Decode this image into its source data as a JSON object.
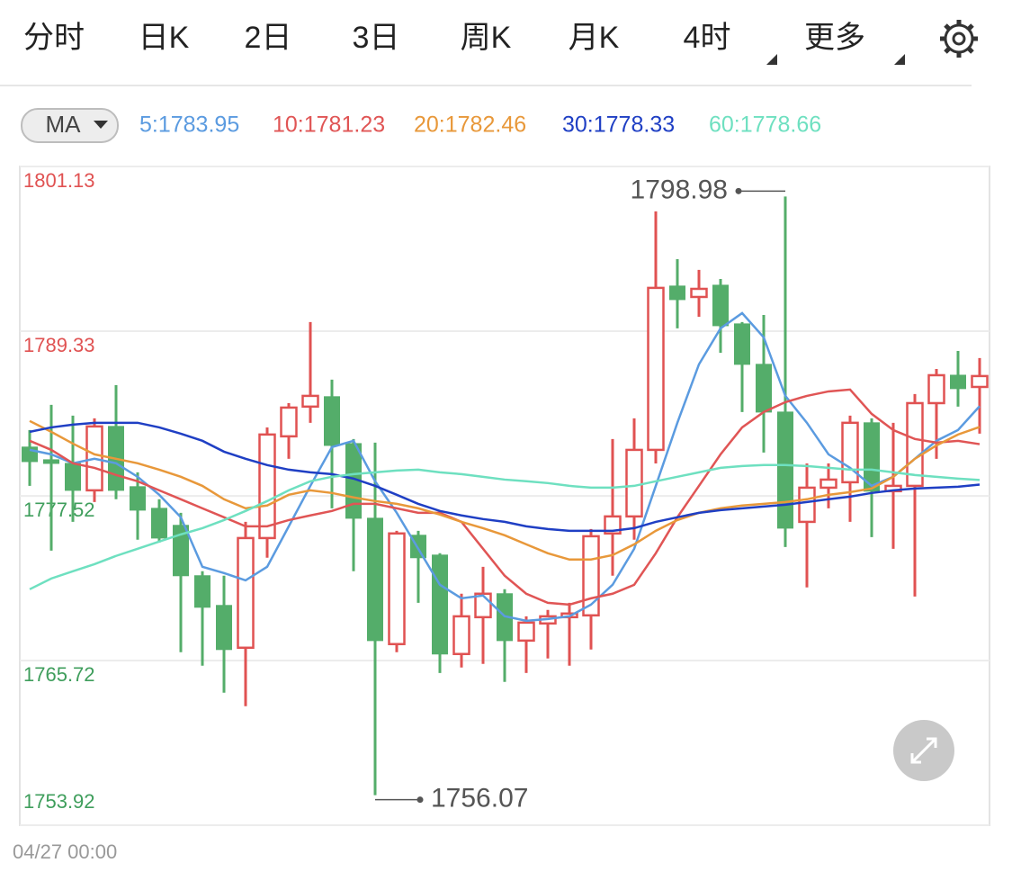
{
  "tabs": {
    "items": [
      "分时",
      "日K",
      "2日",
      "3日",
      "周K",
      "月K",
      "4时",
      "更多"
    ],
    "active": 6,
    "dropdowns": [
      6,
      7
    ]
  },
  "indicator": "MA",
  "chart_data": {
    "type": "candlestick",
    "categories": [
      "04/27 00:00",
      null,
      null,
      null,
      null,
      null,
      null,
      null,
      null,
      null,
      null,
      null,
      null,
      null,
      null,
      null,
      null,
      null,
      null,
      null,
      null,
      null,
      null,
      null,
      null,
      null,
      null,
      null,
      null,
      null,
      null,
      null,
      null,
      null,
      null,
      null,
      null,
      null,
      null,
      null,
      null,
      null,
      null,
      null,
      null
    ],
    "ylim": [
      1753.92,
      1801.13
    ],
    "yticks": [
      1801.13,
      1789.33,
      1777.52,
      1765.72,
      1753.92
    ],
    "ytick_colors": [
      "#e05252",
      "#e05252",
      "#3f9e5c",
      "#3f9e5c",
      "#3f9e5c"
    ],
    "grid": true,
    "up_color": "#e05252",
    "down_color": "#54ad6a",
    "candles": {
      "open": [
        1781.02,
        1780.11,
        1779.85,
        1777.92,
        1782.5,
        1778.18,
        1776.63,
        1775.41,
        1771.8,
        1769.67,
        1766.64,
        1774.5,
        1781.79,
        1783.92,
        1784.63,
        1781.27,
        1775.92,
        1766.9,
        1774.7,
        1773.28,
        1766.19,
        1768.83,
        1770.51,
        1767.15,
        1768.38,
        1768.83,
        1768.96,
        1774.83,
        1776.05,
        1780.82,
        1792.56,
        1791.78,
        1792.62,
        1789.85,
        1786.95,
        1783.53,
        1775.66,
        1778.11,
        1778.5,
        1782.76,
        1777.86,
        1778.24,
        1784.17,
        1786.17,
        1785.33
      ],
      "high": [
        1782.24,
        1784.05,
        1783.27,
        1783.08,
        1785.46,
        1779.21,
        1777.28,
        1776.31,
        1772.12,
        1771.8,
        1775.66,
        1782.43,
        1784.17,
        1789.98,
        1785.85,
        1781.6,
        1781.34,
        1775.02,
        1775.02,
        1773.41,
        1770.51,
        1772.44,
        1770.83,
        1768.89,
        1769.35,
        1769.86,
        1775.15,
        1781.6,
        1783.08,
        1797.91,
        1794.49,
        1793.72,
        1793.07,
        1789.98,
        1790.49,
        1798.98,
        1779.85,
        1779.85,
        1783.27,
        1783.08,
        1782.76,
        1784.82,
        1786.62,
        1787.91,
        1787.4
      ],
      "low": [
        1778.24,
        1773.6,
        1775.66,
        1777.08,
        1777.28,
        1774.38,
        1774.18,
        1766.32,
        1765.35,
        1763.42,
        1762.45,
        1773.09,
        1780.18,
        1782.76,
        1776.63,
        1772.12,
        1756.07,
        1766.32,
        1769.86,
        1764.83,
        1765.22,
        1765.48,
        1764.19,
        1764.83,
        1765.87,
        1765.35,
        1766.51,
        1771.8,
        1774.38,
        1779.85,
        1789.53,
        1790.36,
        1787.78,
        1783.53,
        1780.63,
        1773.86,
        1770.96,
        1776.63,
        1775.66,
        1774.57,
        1773.73,
        1770.31,
        1780.18,
        1783.92,
        1781.98
      ],
      "close": [
        1779.98,
        1779.85,
        1777.92,
        1782.5,
        1777.92,
        1776.5,
        1774.5,
        1771.8,
        1769.54,
        1766.51,
        1774.5,
        1781.92,
        1783.85,
        1784.69,
        1781.14,
        1775.92,
        1767.15,
        1774.83,
        1773.09,
        1766.19,
        1768.89,
        1770.51,
        1767.15,
        1768.44,
        1768.89,
        1769.09,
        1774.63,
        1776.05,
        1780.82,
        1792.43,
        1791.59,
        1792.36,
        1789.72,
        1786.95,
        1783.53,
        1775.21,
        1778.11,
        1778.69,
        1782.76,
        1777.86,
        1778.24,
        1784.17,
        1786.17,
        1785.21,
        1786.11
      ]
    },
    "series": [
      {
        "name": "5",
        "legend_label": "5:1783.95",
        "color": "#5b9be0",
        "values": [
          1780.82,
          1780.5,
          1779.86,
          1780.18,
          1779.86,
          1778.89,
          1777.6,
          1775.99,
          1772.44,
          1771.99,
          1771.47,
          1772.44,
          1775.34,
          1778.24,
          1781.02,
          1781.47,
          1778.57,
          1776.31,
          1773.73,
          1771.15,
          1770.18,
          1770.38,
          1768.9,
          1768.57,
          1768.7,
          1768.9,
          1769.73,
          1771.15,
          1773.73,
          1778.24,
          1782.76,
          1786.95,
          1789.53,
          1790.62,
          1788.88,
          1784.69,
          1782.76,
          1780.5,
          1779.53,
          1778.24,
          1778.89,
          1780.18,
          1781.47,
          1782.24,
          1783.95
        ]
      },
      {
        "name": "10",
        "legend_label": "10:1781.23",
        "color": "#e05555",
        "values": [
          1781.47,
          1780.82,
          1779.86,
          1779.53,
          1779.02,
          1778.57,
          1777.92,
          1777.28,
          1776.63,
          1775.99,
          1775.34,
          1775.34,
          1775.79,
          1776.12,
          1776.44,
          1776.95,
          1776.95,
          1776.63,
          1776.31,
          1776.31,
          1775.66,
          1773.73,
          1771.8,
          1770.51,
          1769.86,
          1769.73,
          1770.18,
          1770.51,
          1771.15,
          1773.41,
          1775.99,
          1778.24,
          1780.5,
          1782.43,
          1783.53,
          1784.24,
          1784.69,
          1785.01,
          1785.14,
          1783.4,
          1782.24,
          1781.6,
          1781.34,
          1781.47,
          1781.23
        ]
      },
      {
        "name": "20",
        "legend_label": "20:1782.46",
        "color": "#e8983a",
        "values": [
          1782.89,
          1782.11,
          1781.27,
          1780.5,
          1780.18,
          1779.86,
          1779.4,
          1778.89,
          1778.24,
          1777.28,
          1776.63,
          1776.83,
          1777.6,
          1777.92,
          1777.73,
          1777.41,
          1777.15,
          1776.95,
          1776.63,
          1776.18,
          1775.66,
          1775.21,
          1774.7,
          1774.05,
          1773.41,
          1772.96,
          1772.96,
          1773.28,
          1774.05,
          1775.02,
          1775.79,
          1776.31,
          1776.63,
          1776.83,
          1776.95,
          1777.08,
          1777.28,
          1777.6,
          1777.79,
          1778.05,
          1778.89,
          1780.18,
          1781.14,
          1781.92,
          1782.46
        ]
      },
      {
        "name": "30",
        "legend_label": "30:1778.33",
        "color": "#1f3fc4",
        "values": [
          1782.11,
          1782.43,
          1782.63,
          1782.76,
          1782.76,
          1782.76,
          1782.43,
          1781.98,
          1781.47,
          1780.69,
          1780.18,
          1779.73,
          1779.4,
          1779.21,
          1779.08,
          1778.76,
          1778.24,
          1777.6,
          1776.95,
          1776.44,
          1776.12,
          1775.86,
          1775.66,
          1775.34,
          1775.15,
          1775.02,
          1775.02,
          1775.02,
          1775.21,
          1775.66,
          1775.99,
          1776.31,
          1776.5,
          1776.63,
          1776.76,
          1776.89,
          1777.08,
          1777.28,
          1777.47,
          1777.73,
          1777.92,
          1778.05,
          1778.11,
          1778.18,
          1778.33
        ]
      },
      {
        "name": "60",
        "legend_label": "60:1778.66",
        "color": "#6ee0c0",
        "values": [
          1770.83,
          1771.6,
          1772.12,
          1772.63,
          1773.22,
          1773.73,
          1774.25,
          1774.76,
          1775.21,
          1775.79,
          1776.44,
          1777.15,
          1777.92,
          1778.57,
          1778.89,
          1779.08,
          1779.21,
          1779.34,
          1779.4,
          1779.21,
          1779.08,
          1778.89,
          1778.69,
          1778.57,
          1778.44,
          1778.24,
          1778.11,
          1778.11,
          1778.24,
          1778.57,
          1778.89,
          1779.21,
          1779.53,
          1779.66,
          1779.73,
          1779.73,
          1779.66,
          1779.53,
          1779.4,
          1779.4,
          1779.21,
          1779.02,
          1778.89,
          1778.76,
          1778.66
        ]
      }
    ]
  }
}
